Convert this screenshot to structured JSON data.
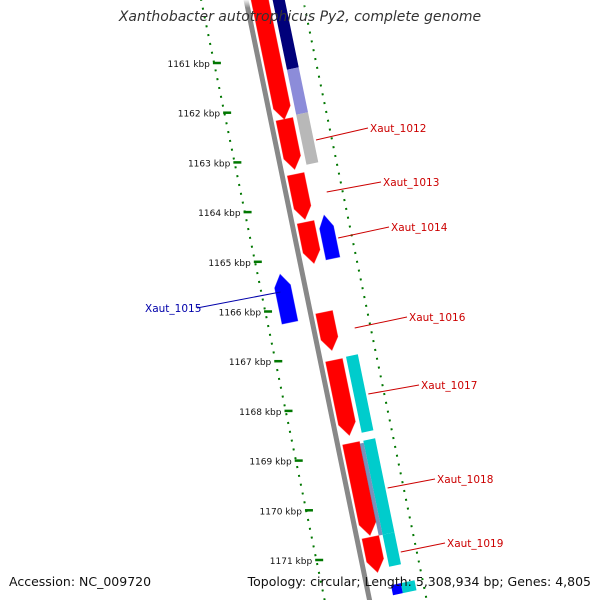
{
  "title": "Xanthobacter autotrophicus Py2, complete genome",
  "footer": {
    "accession": "Accession: NC_009720",
    "summary": "Topology: circular; Length: 5,308,934 bp; Genes: 4,805"
  },
  "colors": {
    "forward_gene": "#ff0000",
    "reverse_gene": "#0000ff",
    "cds_gray": "#b8b8b8",
    "cds_cyan": "#00cccc",
    "cds_navy": "#00007a",
    "backbone": "#888888",
    "ruler": "#007700",
    "label_red": "#cc0000",
    "label_blue": "#0000aa"
  },
  "ruler_ticks": [
    "1161 kbp",
    "1162 kbp",
    "1163 kbp",
    "1164 kbp",
    "1165 kbp",
    "1166 kbp",
    "1167 kbp",
    "1168 kbp",
    "1169 kbp",
    "1170 kbp",
    "1171 kbp"
  ],
  "gene_labels": [
    {
      "name": "Xaut_1012",
      "strand": "forward"
    },
    {
      "name": "Xaut_1013",
      "strand": "forward"
    },
    {
      "name": "Xaut_1014",
      "strand": "forward"
    },
    {
      "name": "Xaut_1015",
      "strand": "reverse"
    },
    {
      "name": "Xaut_1016",
      "strand": "forward"
    },
    {
      "name": "Xaut_1017",
      "strand": "forward"
    },
    {
      "name": "Xaut_1018",
      "strand": "forward"
    },
    {
      "name": "Xaut_1019",
      "strand": "forward"
    }
  ]
}
